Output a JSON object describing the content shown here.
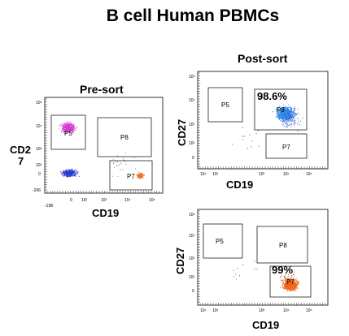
{
  "title": "B cell Human PBMCs",
  "presort": {
    "heading": "Pre-sort",
    "ylabel_line1": "CD2",
    "ylabel_line2": "7",
    "xlabel": "CD19",
    "gates": [
      "P5",
      "P8",
      "P7"
    ],
    "yticks": [
      "10⁵",
      "10⁴",
      "10³",
      "10²",
      "0",
      "-206"
    ],
    "xticks": [
      "-198",
      "0",
      "10²",
      "10³",
      "10⁴",
      "10⁵"
    ]
  },
  "postsort_top": {
    "heading": "Post-sort",
    "ylabel": "CD27",
    "xlabel": "CD19",
    "percent": "98.6%",
    "gates": [
      "P5",
      "P8",
      "P7"
    ],
    "yticks": [
      "10⁵",
      "10⁴",
      "10³",
      "10²",
      "0"
    ],
    "xticks": [
      "10⁴",
      "10²",
      "10³",
      "10⁴",
      "10⁵"
    ]
  },
  "postsort_bottom": {
    "ylabel": "CD27",
    "xlabel": "CD19",
    "percent": "99%",
    "gates": [
      "P5",
      "P8",
      "P7"
    ],
    "yticks": [
      "10⁵",
      "10⁴",
      "10³",
      "10²",
      "0"
    ],
    "xticks": [
      "10⁴",
      "10²",
      "10³",
      "10⁴",
      "10⁵"
    ]
  },
  "colors": {
    "magenta": "#d23cd2",
    "blue": "#2b3ccf",
    "skyblue": "#2f8fe6",
    "orange": "#f26a1b"
  }
}
